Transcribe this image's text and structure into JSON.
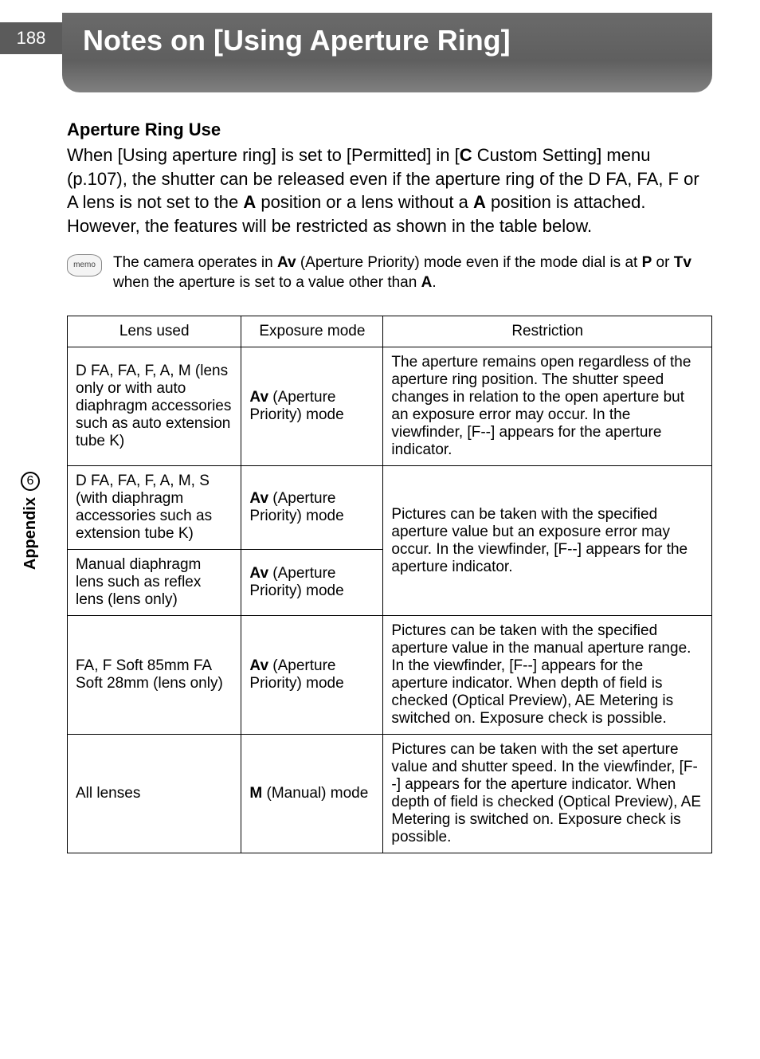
{
  "page_number": "188",
  "title": "Notes on [Using Aperture Ring]",
  "subheading": "Aperture Ring Use",
  "body_segments": {
    "s1": "When [Using aperture ring] is set to [Permitted] in [",
    "s2": "C",
    "s3": " Custom Setting] menu (p.107), the shutter can be released even if the aperture ring of the D FA, FA, F or A lens is not set to the ",
    "s4": "A",
    "s5": " position or a lens without a ",
    "s6": "A",
    "s7": " position is attached. However, the features will be restricted as shown in the table below."
  },
  "memo": {
    "icon_label": "memo",
    "t1": "The camera operates in ",
    "t2": "Av",
    "t3": " (Aperture Priority) mode even if the mode dial is at ",
    "t4": "P",
    "t5": " or ",
    "t6": "Tv",
    "t7": " when the aperture is set to a value other than ",
    "t8": "A",
    "t9": "."
  },
  "table": {
    "headers": {
      "lens": "Lens used",
      "mode": "Exposure mode",
      "restriction": "Restriction"
    },
    "mode_av_prefix": "Av",
    "mode_av_suffix": " (Aperture Priority) mode",
    "mode_m_prefix": "M",
    "mode_m_suffix": " (Manual) mode",
    "rows": {
      "r1_lens": "D FA, FA, F, A, M (lens only or with auto diaphragm accessories such as auto extension tube K)",
      "r1_rest": "The aperture remains open regardless of the aperture ring position. The shutter speed changes in relation to the open aperture but an exposure error may occur. In the viewfinder, [F--] appears for the aperture indicator.",
      "r2_lens": "D FA, FA, F, A, M, S (with diaphragm accessories such as extension tube K)",
      "r23_rest": "Pictures can be taken with the specified aperture value but an exposure error may occur. In the viewfinder, [F--] appears for the aperture indicator.",
      "r3_lens": "Manual diaphragm lens such as reflex lens (lens only)",
      "r4_lens": "FA, F Soft 85mm FA Soft 28mm (lens only)",
      "r4_rest": "Pictures can be taken with the specified aperture value in the manual aperture range. In the viewfinder, [F--] appears for the aperture indicator. When depth of field is checked (Optical Preview), AE Metering is switched on. Exposure check is possible.",
      "r5_lens": "All lenses",
      "r5_rest": "Pictures can be taken with the set aperture value and shutter speed. In the viewfinder, [F--] appears for the aperture indicator. When depth of field is checked (Optical Preview), AE Metering is switched on. Exposure check is possible."
    }
  },
  "side": {
    "section_number": "6",
    "section_label": "Appendix"
  }
}
